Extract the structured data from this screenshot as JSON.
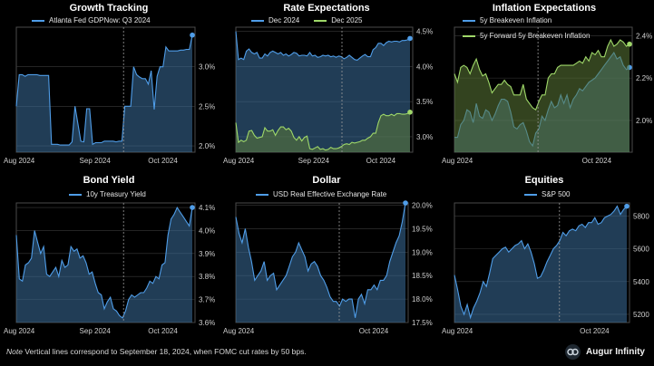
{
  "note": {
    "lead": "Note",
    "text": " Vertical lines correspond to September 18, 2024, when FOMC cut rates by 50 bps."
  },
  "brand": {
    "name": "Augur Infinity",
    "icon": "augur-logo-icon"
  },
  "colors": {
    "background": "#000000",
    "blue": "#4f9de8",
    "blue_fill": "#3c6f9d",
    "green": "#9fd869",
    "green_fill": "#5d7a39",
    "grid": "#3a3a3a",
    "vline": "#9a9a9a"
  },
  "chart_data": [
    {
      "type": "line",
      "title": "Growth Tracking",
      "xticks": [
        "Aug 2024",
        "Sep 2024",
        "Oct 2024"
      ],
      "yticks": [
        "2.0%",
        "2.5%",
        "3.0%"
      ],
      "ylim": [
        1.92,
        3.5
      ],
      "grid": true,
      "legend": "top-left",
      "fill": true,
      "series": [
        {
          "name": "Atlanta Fed GDPNow: Q3 2024",
          "color": "#4f9de8",
          "values": [
            2.5,
            2.9,
            2.9,
            2.88,
            2.9,
            2.9,
            2.9,
            2.9,
            2.89,
            2.89,
            2.89,
            2.89,
            2.02,
            2.02,
            2.02,
            2.01,
            2.01,
            2.01,
            2.01,
            2.05,
            2.5,
            2.28,
            2.06,
            2.05,
            2.47,
            2.47,
            2.02,
            2.04,
            2.04,
            2.04,
            2.06,
            2.06,
            2.06,
            2.06,
            2.05,
            2.06,
            2.06,
            2.5,
            2.5,
            2.5,
            3.0,
            2.9,
            2.87,
            2.85,
            2.85,
            2.78,
            2.95,
            2.46,
            2.88,
            3.0,
            3.0,
            3.25,
            3.2,
            3.2,
            3.2,
            3.2,
            3.21,
            3.21,
            3.22,
            3.22,
            3.4
          ]
        }
      ]
    },
    {
      "type": "line",
      "title": "Rate Expectations",
      "xticks": [
        "Aug 2024",
        "Sep 2024",
        "Oct 2024"
      ],
      "yticks": [
        "3.0%",
        "3.5%",
        "4.0%",
        "4.5%"
      ],
      "ylim": [
        2.78,
        4.56
      ],
      "grid": true,
      "legend": "top-left",
      "fill": true,
      "series": [
        {
          "name": "Dec 2024",
          "color": "#4f9de8",
          "values": [
            4.5,
            4.1,
            4.12,
            4.1,
            4.22,
            4.25,
            4.2,
            4.18,
            4.2,
            4.12,
            4.12,
            4.18,
            4.15,
            4.2,
            4.22,
            4.2,
            4.18,
            4.2,
            4.16,
            4.18,
            4.15,
            4.17,
            4.2,
            4.19,
            4.15,
            4.16,
            4.16,
            4.15,
            4.2,
            4.15,
            4.16,
            4.13,
            4.14,
            4.16,
            4.15,
            4.16,
            4.14,
            4.15,
            4.13,
            4.15,
            4.14,
            4.11,
            4.13,
            4.16,
            4.13,
            4.1,
            4.09,
            4.12,
            4.15,
            4.17,
            4.14,
            4.14,
            4.24,
            4.27,
            4.33,
            4.33,
            4.3,
            4.34,
            4.36,
            4.35,
            4.36,
            4.36,
            4.35,
            4.37,
            4.37,
            4.38,
            4.4
          ]
        },
        {
          "name": "Dec 2025",
          "color": "#9fd869",
          "values": [
            3.2,
            2.92,
            2.95,
            2.93,
            2.95,
            3.08,
            3.09,
            3.02,
            2.98,
            2.99,
            3.0,
            3.13,
            3.08,
            3.08,
            3.1,
            3.02,
            3.09,
            3.14,
            3.14,
            3.1,
            3.12,
            3.08,
            2.99,
            2.95,
            3.0,
            2.94,
            2.99,
            3.01,
            2.83,
            2.82,
            2.84,
            2.86,
            2.82,
            2.83,
            2.81,
            2.82,
            2.85,
            2.83,
            2.83,
            2.84,
            2.86,
            2.89,
            2.9,
            2.89,
            2.92,
            2.91,
            2.92,
            2.93,
            2.95,
            2.95,
            2.98,
            3.0,
            3.05,
            3.05,
            3.2,
            3.3,
            3.32,
            3.3,
            3.3,
            3.32,
            3.3,
            3.33,
            3.33,
            3.32,
            3.32,
            3.33,
            3.35
          ]
        }
      ]
    },
    {
      "type": "line",
      "title": "Inflation Expectations",
      "xticks": [
        "Aug 2024",
        "Oct 2024"
      ],
      "yticks": [
        "2.0%",
        "2.2%",
        "2.4%"
      ],
      "ylim": [
        1.85,
        2.44
      ],
      "grid": true,
      "legend": "top-left",
      "fill": true,
      "series": [
        {
          "name": "5y Breakeven Inflation",
          "color": "#4f9de8",
          "values": [
            1.92,
            1.92,
            1.98,
            2.0,
            2.05,
            2.04,
            1.99,
            2.08,
            2.02,
            2.01,
            2.05,
            2.04,
            2.0,
            2.03,
            2.07,
            2.1,
            2.1,
            2.09,
            2.04,
            1.97,
            1.96,
            1.98,
            1.99,
            1.95,
            1.9,
            1.88,
            1.94,
            1.96,
            2.02,
            2.0,
            2.05,
            2.09,
            2.06,
            2.07,
            2.12,
            2.08,
            2.12,
            2.06,
            2.1,
            2.12,
            2.15,
            2.14,
            2.16,
            2.18,
            2.19,
            2.2,
            2.22,
            2.24,
            2.26,
            2.28,
            2.3,
            2.32,
            2.29,
            2.3,
            2.26,
            2.24,
            2.25
          ]
        },
        {
          "name": "5y Forward 5y Breakeven Inflation",
          "color": "#9fd869",
          "values": [
            2.22,
            2.18,
            2.25,
            2.26,
            2.25,
            2.22,
            2.26,
            2.29,
            2.24,
            2.21,
            2.22,
            2.18,
            2.13,
            2.15,
            2.17,
            2.17,
            2.19,
            2.17,
            2.16,
            2.12,
            2.12,
            2.12,
            2.17,
            2.1,
            2.08,
            2.06,
            2.05,
            2.09,
            2.12,
            2.12,
            2.2,
            2.22,
            2.22,
            2.25,
            2.26,
            2.26,
            2.26,
            2.26,
            2.26,
            2.27,
            2.28,
            2.27,
            2.3,
            2.28,
            2.32,
            2.31,
            2.33,
            2.3,
            2.3,
            2.35,
            2.38,
            2.35,
            2.36,
            2.38,
            2.37,
            2.35,
            2.36
          ]
        }
      ]
    },
    {
      "type": "line",
      "title": "Bond Yield",
      "xticks": [
        "Aug 2024",
        "Sep 2024",
        "Oct 2024"
      ],
      "yticks": [
        "3.6%",
        "3.7%",
        "3.8%",
        "3.9%",
        "4.0%",
        "4.1%"
      ],
      "ylim": [
        3.6,
        4.12
      ],
      "grid": true,
      "legend": "top-left",
      "fill": true,
      "series": [
        {
          "name": "10y Treasury Yield",
          "color": "#4f9de8",
          "values": [
            3.98,
            3.79,
            3.78,
            3.85,
            3.86,
            3.88,
            4.0,
            3.95,
            3.9,
            3.93,
            3.81,
            3.8,
            3.82,
            3.84,
            3.8,
            3.87,
            3.84,
            3.85,
            3.93,
            3.91,
            3.92,
            3.88,
            3.89,
            3.86,
            3.81,
            3.82,
            3.77,
            3.73,
            3.72,
            3.66,
            3.69,
            3.71,
            3.66,
            3.65,
            3.63,
            3.62,
            3.65,
            3.7,
            3.72,
            3.71,
            3.72,
            3.73,
            3.73,
            3.75,
            3.78,
            3.77,
            3.8,
            3.79,
            3.85,
            3.86,
            3.98,
            4.05,
            4.07,
            4.1,
            4.08,
            4.06,
            4.04,
            4.02,
            4.1
          ]
        }
      ]
    },
    {
      "type": "line",
      "title": "Dollar",
      "xticks": [
        "Aug 2024",
        "Oct 2024"
      ],
      "yticks": [
        "17.5%",
        "18.0%",
        "18.5%",
        "19.0%",
        "19.5%",
        "20.0%"
      ],
      "ylim": [
        17.5,
        20.05
      ],
      "grid": true,
      "legend": "top-left",
      "fill": true,
      "series": [
        {
          "name": "USD Real Effective Exchange Rate",
          "color": "#4f9de8",
          "values": [
            19.75,
            19.4,
            19.2,
            19.5,
            19.1,
            18.8,
            18.4,
            18.5,
            18.6,
            18.8,
            18.4,
            18.5,
            18.55,
            18.2,
            18.3,
            18.4,
            18.5,
            18.7,
            18.9,
            19.0,
            19.2,
            19.05,
            18.9,
            18.6,
            18.75,
            18.8,
            18.7,
            18.5,
            18.4,
            18.25,
            18.05,
            17.95,
            17.95,
            17.85,
            18.0,
            17.95,
            18.0,
            18.0,
            17.6,
            18.0,
            18.1,
            17.9,
            18.2,
            18.2,
            18.3,
            18.2,
            18.4,
            18.4,
            18.5,
            18.8,
            19.0,
            19.2,
            19.35,
            19.65,
            20.05
          ]
        }
      ]
    },
    {
      "type": "line",
      "title": "Equities",
      "xticks": [
        "Aug 2024",
        "Oct 2024"
      ],
      "yticks": [
        "5200",
        "5400",
        "5600",
        "5800"
      ],
      "ylim": [
        5150,
        5880
      ],
      "grid": true,
      "legend": "top-left",
      "fill": true,
      "series": [
        {
          "name": "S&P 500",
          "color": "#4f9de8",
          "values": [
            5440,
            5350,
            5250,
            5200,
            5260,
            5180,
            5240,
            5280,
            5330,
            5400,
            5370,
            5450,
            5540,
            5560,
            5580,
            5600,
            5610,
            5580,
            5600,
            5620,
            5630,
            5650,
            5600,
            5630,
            5580,
            5510,
            5420,
            5430,
            5470,
            5520,
            5560,
            5600,
            5620,
            5650,
            5700,
            5680,
            5710,
            5720,
            5710,
            5740,
            5750,
            5730,
            5760,
            5760,
            5790,
            5750,
            5760,
            5790,
            5800,
            5810,
            5830,
            5860,
            5810,
            5840,
            5860
          ]
        }
      ]
    }
  ]
}
